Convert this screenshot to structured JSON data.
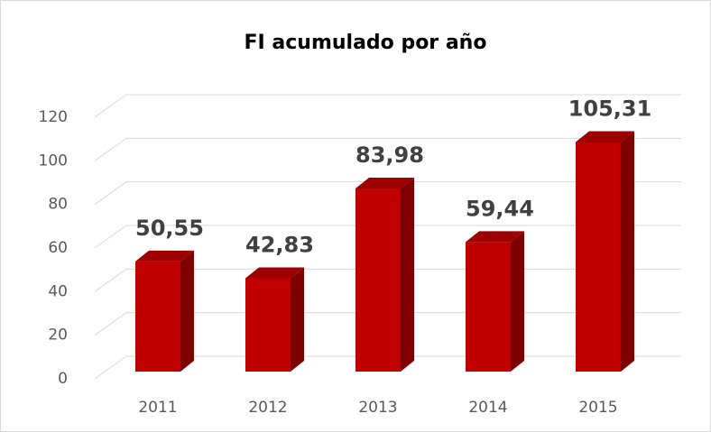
{
  "chart_data": {
    "type": "bar3d",
    "title": "FI acumulado por año",
    "categories": [
      "2011",
      "2012",
      "2013",
      "2014",
      "2015"
    ],
    "values": [
      50.55,
      42.83,
      83.98,
      59.44,
      105.31
    ],
    "value_labels": [
      "50,55",
      "42,83",
      "83,98",
      "59,44",
      "105,31"
    ],
    "color": "#c00000",
    "ylim": [
      0,
      120
    ],
    "yticks": [
      0,
      20,
      40,
      60,
      80,
      100,
      120
    ],
    "grid": true
  }
}
